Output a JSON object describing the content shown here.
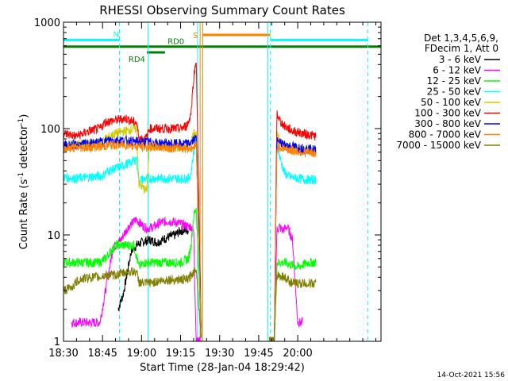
{
  "chart_data": {
    "type": "line",
    "title": "RHESSI Observing Summary Count Rates",
    "xlabel": "Start Time (28-Jan-04 18:29:42)",
    "ylabel_prefix": "Count Rate (s",
    "ylabel_sup": "-1",
    "ylabel_mid": " detector",
    "ylabel_sup2": "-1",
    "ylabel_suffix": ")",
    "y_scale": "log",
    "ylim": [
      1,
      1000
    ],
    "xlim": [
      0,
      122
    ],
    "x_unit": "minutes after 18:30",
    "x_ticks": [
      {
        "t": 0,
        "label": "18:30"
      },
      {
        "t": 15,
        "label": "18:45"
      },
      {
        "t": 30,
        "label": "19:00"
      },
      {
        "t": 45,
        "label": "19:15"
      },
      {
        "t": 60,
        "label": "19:30"
      },
      {
        "t": 75,
        "label": "19:45"
      },
      {
        "t": 90,
        "label": "20:00"
      }
    ],
    "y_ticks": [
      {
        "v": 1,
        "label": "1"
      },
      {
        "v": 10,
        "label": "10"
      },
      {
        "v": 100,
        "label": "100"
      },
      {
        "v": 1000,
        "label": "1000"
      }
    ],
    "legend": {
      "position": "top-right",
      "header": [
        "Det 1,3,4,5,6,9,",
        "FDecim 1, Att 0"
      ]
    },
    "timestamp": "14-Oct-2021 15:56",
    "series": [
      {
        "name": "3 - 6 keV",
        "color": "#000000",
        "points": [
          [
            21,
            2
          ],
          [
            23,
            2.8
          ],
          [
            26,
            7
          ],
          [
            28,
            8
          ],
          [
            30,
            8.5
          ],
          [
            33,
            9
          ],
          [
            36,
            8.5
          ],
          [
            40,
            9.5
          ],
          [
            43,
            10
          ],
          [
            45,
            11
          ],
          [
            48,
            11
          ]
        ],
        "gaps": [
          [
            55,
            81
          ]
        ]
      },
      {
        "name": "6 - 12 keV",
        "color": "#ff00ff",
        "points": [
          [
            3,
            1.5
          ],
          [
            7,
            1.5
          ],
          [
            14,
            1.5
          ],
          [
            19,
            7.5
          ],
          [
            22,
            9
          ],
          [
            25,
            12
          ],
          [
            28,
            14
          ],
          [
            30,
            12.5
          ],
          [
            32,
            11.5
          ],
          [
            35,
            12
          ],
          [
            37,
            13
          ],
          [
            40,
            13.5
          ],
          [
            44,
            13
          ],
          [
            48,
            12
          ],
          [
            49,
            12
          ],
          [
            50,
            11
          ],
          [
            51,
            1
          ],
          [
            52,
            1
          ],
          [
            53,
            1
          ],
          [
            79,
            1
          ],
          [
            81,
            1
          ],
          [
            82,
            11
          ],
          [
            83,
            12
          ],
          [
            84,
            11
          ],
          [
            86,
            12
          ],
          [
            88,
            9
          ],
          [
            90,
            1.5
          ],
          [
            92,
            1.5
          ]
        ],
        "gaps": [
          [
            53,
            79
          ]
        ]
      },
      {
        "name": "12 - 25 keV",
        "color": "#00ff00",
        "points": [
          [
            0,
            5.5
          ],
          [
            10,
            5.5
          ],
          [
            14,
            5.5
          ],
          [
            16,
            6
          ],
          [
            20,
            8
          ],
          [
            25,
            8
          ],
          [
            27,
            8
          ],
          [
            29,
            5
          ],
          [
            31,
            5.5
          ],
          [
            35,
            5.5
          ],
          [
            40,
            5.5
          ],
          [
            45,
            5.5
          ],
          [
            48,
            6
          ],
          [
            49,
            8
          ],
          [
            50,
            15
          ],
          [
            51,
            18
          ],
          [
            53,
            1
          ],
          [
            79,
            1
          ],
          [
            81,
            1
          ],
          [
            82,
            5.5
          ],
          [
            85,
            5.5
          ],
          [
            90,
            5
          ],
          [
            94,
            5.5
          ],
          [
            97,
            5.5
          ]
        ],
        "gaps": [
          [
            53,
            79
          ]
        ]
      },
      {
        "name": "25 - 50 keV",
        "color": "#00ffff",
        "points": [
          [
            0,
            35
          ],
          [
            5,
            34
          ],
          [
            10,
            35
          ],
          [
            15,
            36
          ],
          [
            17,
            40
          ],
          [
            20,
            42
          ],
          [
            22,
            44
          ],
          [
            25,
            47
          ],
          [
            27,
            50
          ],
          [
            28,
            52
          ],
          [
            29,
            33
          ],
          [
            30,
            33
          ],
          [
            32,
            34
          ],
          [
            36,
            34
          ],
          [
            40,
            34
          ],
          [
            45,
            34
          ],
          [
            48,
            34
          ],
          [
            49,
            38
          ],
          [
            50,
            60
          ],
          [
            51,
            80
          ],
          [
            53,
            1
          ],
          [
            79,
            1
          ],
          [
            81,
            1
          ],
          [
            82,
            75
          ],
          [
            83,
            55
          ],
          [
            84,
            45
          ],
          [
            85,
            38
          ],
          [
            87,
            35
          ],
          [
            90,
            34
          ],
          [
            94,
            33
          ],
          [
            97,
            33
          ]
        ],
        "gaps": [
          [
            53,
            79
          ]
        ]
      },
      {
        "name": "50 - 100 keV",
        "color": "#cccc00",
        "points": [
          [
            0,
            70
          ],
          [
            10,
            72
          ],
          [
            14,
            72
          ],
          [
            16,
            80
          ],
          [
            20,
            90
          ],
          [
            24,
            95
          ],
          [
            27,
            100
          ],
          [
            28,
            100
          ],
          [
            29,
            30
          ],
          [
            31,
            27
          ],
          [
            32,
            26
          ],
          [
            33,
            70
          ],
          [
            35,
            68
          ],
          [
            40,
            67
          ],
          [
            45,
            67
          ],
          [
            48,
            68
          ],
          [
            49,
            75
          ],
          [
            50,
            90
          ],
          [
            51,
            95
          ],
          [
            53,
            1
          ],
          [
            79,
            1
          ],
          [
            81,
            1
          ],
          [
            82,
            90
          ],
          [
            83,
            80
          ],
          [
            85,
            70
          ],
          [
            88,
            65
          ],
          [
            92,
            65
          ],
          [
            97,
            63
          ]
        ],
        "gaps": [
          [
            53,
            79
          ]
        ]
      },
      {
        "name": "100 - 300 keV",
        "color": "#ff0000",
        "points": [
          [
            0,
            90
          ],
          [
            5,
            85
          ],
          [
            10,
            95
          ],
          [
            14,
            100
          ],
          [
            16,
            115
          ],
          [
            20,
            120
          ],
          [
            24,
            125
          ],
          [
            27,
            115
          ],
          [
            28,
            115
          ],
          [
            29,
            82
          ],
          [
            31,
            80
          ],
          [
            32,
            82
          ],
          [
            33,
            100
          ],
          [
            35,
            100
          ],
          [
            40,
            100
          ],
          [
            45,
            100
          ],
          [
            47,
            105
          ],
          [
            48,
            115
          ],
          [
            49,
            140
          ],
          [
            50,
            300
          ],
          [
            51,
            450
          ],
          [
            53,
            1
          ],
          [
            79,
            1
          ],
          [
            81,
            1
          ],
          [
            82,
            140
          ],
          [
            83,
            120
          ],
          [
            85,
            105
          ],
          [
            88,
            95
          ],
          [
            92,
            90
          ],
          [
            97,
            85
          ]
        ],
        "gaps": [
          [
            53,
            79
          ]
        ]
      },
      {
        "name": "300 - 800 keV",
        "color": "#0000ff",
        "points": [
          [
            0,
            70
          ],
          [
            5,
            70
          ],
          [
            10,
            72
          ],
          [
            15,
            75
          ],
          [
            18,
            78
          ],
          [
            22,
            78
          ],
          [
            26,
            76
          ],
          [
            28,
            75
          ],
          [
            32,
            75
          ],
          [
            36,
            73
          ],
          [
            40,
            72
          ],
          [
            45,
            72
          ],
          [
            48,
            72
          ],
          [
            49,
            74
          ],
          [
            50,
            78
          ],
          [
            51,
            80
          ],
          [
            53,
            1
          ],
          [
            79,
            1
          ],
          [
            81,
            1
          ],
          [
            82,
            75
          ],
          [
            85,
            70
          ],
          [
            88,
            68
          ],
          [
            92,
            65
          ],
          [
            97,
            63
          ]
        ],
        "gaps": [
          [
            53,
            79
          ]
        ]
      },
      {
        "name": "800 - 7000 keV",
        "color": "#ff8000",
        "points": [
          [
            0,
            65
          ],
          [
            5,
            66
          ],
          [
            10,
            67
          ],
          [
            15,
            68
          ],
          [
            18,
            70
          ],
          [
            22,
            70
          ],
          [
            26,
            70
          ],
          [
            28,
            68
          ],
          [
            32,
            67
          ],
          [
            36,
            67
          ],
          [
            40,
            66
          ],
          [
            45,
            66
          ],
          [
            48,
            65
          ],
          [
            49,
            66
          ],
          [
            50,
            68
          ],
          [
            51,
            70
          ],
          [
            53,
            1
          ],
          [
            79,
            1
          ],
          [
            81,
            1
          ],
          [
            82,
            68
          ],
          [
            85,
            65
          ],
          [
            88,
            62
          ],
          [
            92,
            60
          ],
          [
            97,
            58
          ]
        ],
        "gaps": [
          [
            53,
            79
          ]
        ]
      },
      {
        "name": "7000 - 15000 keV",
        "color": "#808000",
        "points": [
          [
            0,
            3
          ],
          [
            3,
            3.2
          ],
          [
            6,
            3.8
          ],
          [
            10,
            4
          ],
          [
            14,
            4
          ],
          [
            16,
            4.2
          ],
          [
            20,
            4.2
          ],
          [
            25,
            4.5
          ],
          [
            28,
            4.5
          ],
          [
            29,
            3.6
          ],
          [
            31,
            3.5
          ],
          [
            35,
            3.6
          ],
          [
            40,
            3.8
          ],
          [
            45,
            3.8
          ],
          [
            48,
            3.8
          ],
          [
            49,
            4.2
          ],
          [
            50,
            4.5
          ],
          [
            51,
            5
          ],
          [
            53,
            1
          ],
          [
            79,
            1
          ],
          [
            81,
            1
          ],
          [
            82,
            4.2
          ],
          [
            85,
            4
          ],
          [
            88,
            3.5
          ],
          [
            92,
            3.5
          ],
          [
            97,
            3.5
          ]
        ],
        "gaps": [
          [
            53,
            79
          ]
        ]
      }
    ],
    "vlines": [
      {
        "t": 21.5,
        "color": "#00ffff",
        "dashed": true
      },
      {
        "t": 32.5,
        "color": "#00ffff",
        "dashed": false
      },
      {
        "t": 51.5,
        "color": "#00ffff",
        "dashed": false
      },
      {
        "t": 52.5,
        "color": "#ff8000",
        "dashed": false
      },
      {
        "t": 53.5,
        "color": "#ff8000",
        "dashed": false
      },
      {
        "t": 78.5,
        "color": "#00ffff",
        "dashed": false
      },
      {
        "t": 79.5,
        "color": "#00ffff",
        "dashed": true
      },
      {
        "t": 117.0,
        "color": "#00ffff",
        "dashed": true
      }
    ],
    "flags": [
      {
        "label": "N",
        "color": "#00ffff",
        "segments": [
          [
            0,
            21.5
          ],
          [
            79.5,
            117
          ]
        ],
        "level": 680
      },
      {
        "label": "S",
        "color": "#ff8000",
        "segments": [
          [
            53.5,
            79.5
          ]
        ],
        "level": 760
      },
      {
        "label": "RD0",
        "color": "#008000",
        "segments": [
          [
            0,
            122
          ]
        ],
        "level": 590
      },
      {
        "label": "RD4",
        "color": "#008000",
        "segments": [
          [
            32,
            39
          ]
        ],
        "level": 520
      }
    ]
  }
}
